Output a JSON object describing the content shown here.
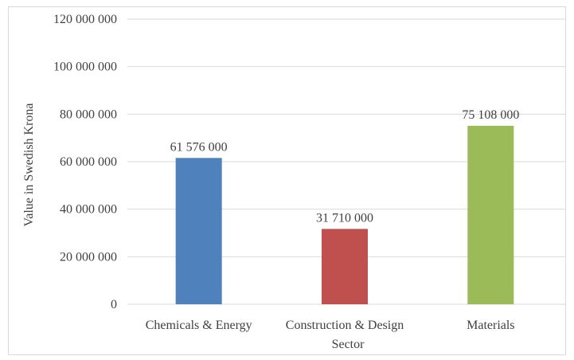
{
  "chart_data": {
    "type": "bar",
    "categories": [
      "Chemicals & Energy",
      "Construction & Design",
      "Materials"
    ],
    "values": [
      61576000,
      31710000,
      75108000
    ],
    "data_labels": [
      "61 576 000",
      "31 710 000",
      "75 108 000"
    ],
    "colors": [
      "#4f81bd",
      "#c0504d",
      "#9bbb59"
    ],
    "title": "",
    "xlabel": "Sector",
    "ylabel": "Value in Swedish Krona",
    "ylim": [
      0,
      120000000
    ],
    "yticks": [
      0,
      20000000,
      40000000,
      60000000,
      80000000,
      100000000,
      120000000
    ],
    "ytick_labels": [
      "0",
      "20 000 000",
      "40 000 000",
      "60 000 000",
      "80 000 000",
      "100 000 000",
      "120 000 000"
    ],
    "grid": true,
    "gridline_color": "#d9d9d9",
    "legend": "none"
  }
}
